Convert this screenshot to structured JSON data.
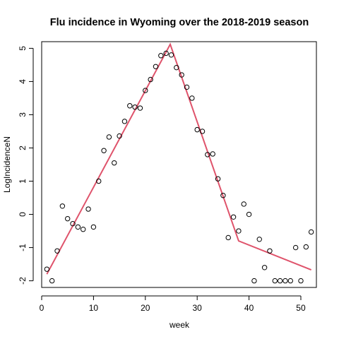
{
  "chart_data": {
    "type": "scatter",
    "title": "Flu incidence in Wyoming over the 2018-2019 season",
    "xlabel": "week",
    "ylabel": "LogIncidenceN",
    "xlim": [
      0,
      53
    ],
    "ylim": [
      -2.2,
      5.2
    ],
    "x_ticks": [
      0,
      10,
      20,
      30,
      40,
      50
    ],
    "y_ticks": [
      -2,
      -1,
      0,
      1,
      2,
      3,
      4,
      5
    ],
    "series": [
      {
        "type": "scatter",
        "marker": "open-circle",
        "color": "#000000",
        "points": [
          [
            1,
            -1.65
          ],
          [
            2,
            -2.0
          ],
          [
            3,
            -1.1
          ],
          [
            4,
            0.25
          ],
          [
            5,
            -0.13
          ],
          [
            6,
            -0.28
          ],
          [
            7,
            -0.38
          ],
          [
            8,
            -0.45
          ],
          [
            9,
            0.16
          ],
          [
            10,
            -0.38
          ],
          [
            11,
            1.0
          ],
          [
            12,
            1.92
          ],
          [
            13,
            2.33
          ],
          [
            14,
            1.55
          ],
          [
            15,
            2.36
          ],
          [
            16,
            2.8
          ],
          [
            17,
            3.27
          ],
          [
            18,
            3.23
          ],
          [
            19,
            3.2
          ],
          [
            20,
            3.73
          ],
          [
            21,
            4.06
          ],
          [
            22,
            4.45
          ],
          [
            23,
            4.78
          ],
          [
            24,
            4.85
          ],
          [
            25,
            4.8
          ],
          [
            26,
            4.42
          ],
          [
            27,
            4.2
          ],
          [
            28,
            3.83
          ],
          [
            29,
            3.5
          ],
          [
            30,
            2.55
          ],
          [
            31,
            2.5
          ],
          [
            32,
            1.8
          ],
          [
            33,
            1.82
          ],
          [
            34,
            1.07
          ],
          [
            35,
            0.57
          ],
          [
            36,
            -0.7
          ],
          [
            37,
            -0.08
          ],
          [
            38,
            -0.5
          ],
          [
            39,
            0.31
          ],
          [
            40,
            0.0
          ],
          [
            41,
            -2.0
          ],
          [
            42,
            -0.75
          ],
          [
            43,
            -1.6
          ],
          [
            44,
            -1.1
          ],
          [
            45,
            -2.0
          ],
          [
            46,
            -2.0
          ],
          [
            47,
            -2.0
          ],
          [
            48,
            -2.0
          ],
          [
            49,
            -1.0
          ],
          [
            50,
            -2.0
          ],
          [
            51,
            -0.98
          ],
          [
            52,
            -0.53
          ]
        ]
      },
      {
        "type": "line",
        "color": "#DF536B",
        "points": [
          [
            1,
            -1.8
          ],
          [
            24.8,
            5.12
          ],
          [
            38,
            -0.8
          ],
          [
            52,
            -1.67
          ]
        ]
      }
    ]
  }
}
